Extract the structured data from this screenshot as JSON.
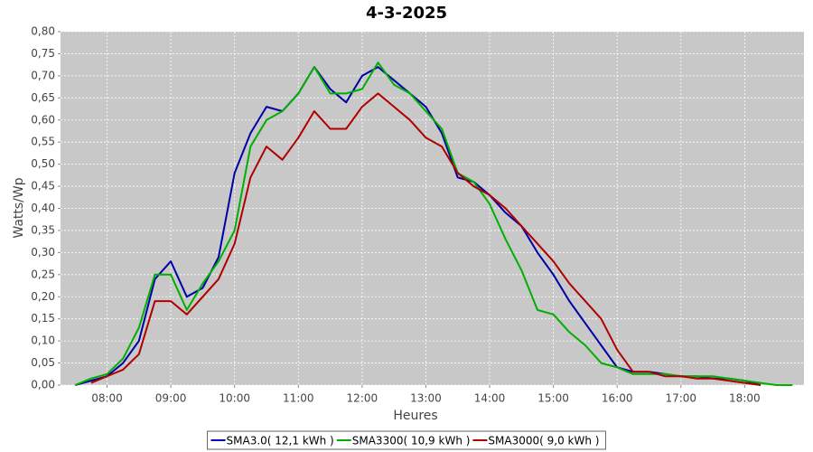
{
  "chart_data": {
    "type": "line",
    "title": "4-3-2025",
    "x_label": "Heures",
    "y_label": "Watts/Wp",
    "x": [
      7.5,
      7.75,
      8,
      8.25,
      8.5,
      8.75,
      9,
      9.25,
      9.5,
      9.75,
      10,
      10.25,
      10.5,
      10.75,
      11,
      11.25,
      11.5,
      11.75,
      12,
      12.25,
      12.5,
      12.75,
      13,
      13.25,
      13.5,
      13.75,
      14,
      14.25,
      14.5,
      14.75,
      15,
      15.25,
      15.5,
      15.75,
      16,
      16.25,
      16.5,
      16.75,
      17,
      17.25,
      17.5,
      17.75,
      18,
      18.25,
      18.5,
      18.75
    ],
    "series": [
      {
        "name": "SMA3.0( 12,1 kWh )",
        "color": "#0000a8",
        "values": [
          0,
          0.01,
          0.02,
          0.05,
          0.1,
          0.24,
          0.28,
          0.2,
          0.22,
          0.29,
          0.48,
          0.57,
          0.63,
          0.62,
          0.66,
          0.72,
          0.67,
          0.64,
          0.7,
          0.72,
          0.69,
          0.66,
          0.63,
          0.57,
          0.47,
          0.46,
          0.43,
          0.39,
          0.36,
          0.3,
          0.25,
          0.19,
          0.14,
          0.09,
          0.04,
          0.03,
          0.03,
          0.025,
          0.02,
          0.02,
          0.015,
          0.015,
          0.01,
          0,
          null,
          null
        ]
      },
      {
        "name": "SMA3300( 10,9 kWh )",
        "color": "#00b000",
        "values": [
          0,
          0.015,
          0.025,
          0.06,
          0.13,
          0.25,
          0.25,
          0.17,
          0.23,
          0.28,
          0.35,
          0.54,
          0.6,
          0.62,
          0.66,
          0.72,
          0.66,
          0.66,
          0.67,
          0.73,
          0.68,
          0.66,
          0.62,
          0.58,
          0.48,
          0.46,
          0.41,
          0.33,
          0.26,
          0.17,
          0.16,
          0.12,
          0.09,
          0.05,
          0.04,
          0.025,
          0.025,
          0.025,
          0.02,
          0.02,
          0.02,
          0.015,
          0.01,
          0.005,
          0,
          0
        ]
      },
      {
        "name": "SMA3000( 9,0 kWh )",
        "color": "#b00000",
        "values": [
          null,
          0.005,
          0.02,
          0.035,
          0.07,
          0.19,
          0.19,
          0.16,
          0.2,
          0.24,
          0.32,
          0.47,
          0.54,
          0.51,
          0.56,
          0.62,
          0.58,
          0.58,
          0.63,
          0.66,
          0.63,
          0.6,
          0.56,
          0.54,
          0.48,
          0.45,
          0.43,
          0.4,
          0.36,
          0.32,
          0.28,
          0.23,
          0.19,
          0.15,
          0.08,
          0.03,
          0.03,
          0.02,
          0.02,
          0.015,
          0.015,
          0.01,
          0.005,
          0,
          null,
          null
        ]
      }
    ],
    "xlim": [
      7.27,
      18.93
    ],
    "xticks": [
      {
        "value": 8,
        "label": "08:00"
      },
      {
        "value": 9,
        "label": "09:00"
      },
      {
        "value": 10,
        "label": "10:00"
      },
      {
        "value": 11,
        "label": "11:00"
      },
      {
        "value": 12,
        "label": "12:00"
      },
      {
        "value": 13,
        "label": "13:00"
      },
      {
        "value": 14,
        "label": "14:00"
      },
      {
        "value": 15,
        "label": "15:00"
      },
      {
        "value": 16,
        "label": "16:00"
      },
      {
        "value": 17,
        "label": "17:00"
      },
      {
        "value": 18,
        "label": "18:00"
      }
    ],
    "ylim": [
      0,
      0.8
    ],
    "yticks": [
      {
        "value": 0,
        "label": "0,00"
      },
      {
        "value": 0.05,
        "label": "0,05"
      },
      {
        "value": 0.1,
        "label": "0,10"
      },
      {
        "value": 0.15,
        "label": "0,15"
      },
      {
        "value": 0.2,
        "label": "0,20"
      },
      {
        "value": 0.25,
        "label": "0,25"
      },
      {
        "value": 0.3,
        "label": "0,30"
      },
      {
        "value": 0.35,
        "label": "0,35"
      },
      {
        "value": 0.4,
        "label": "0,40"
      },
      {
        "value": 0.45,
        "label": "0,45"
      },
      {
        "value": 0.5,
        "label": "0,50"
      },
      {
        "value": 0.55,
        "label": "0,55"
      },
      {
        "value": 0.6,
        "label": "0,60"
      },
      {
        "value": 0.65,
        "label": "0,65"
      },
      {
        "value": 0.7,
        "label": "0,70"
      },
      {
        "value": 0.75,
        "label": "0,75"
      },
      {
        "value": 0.8,
        "label": "0,80"
      }
    ],
    "grid": true,
    "legend": "bottom"
  }
}
